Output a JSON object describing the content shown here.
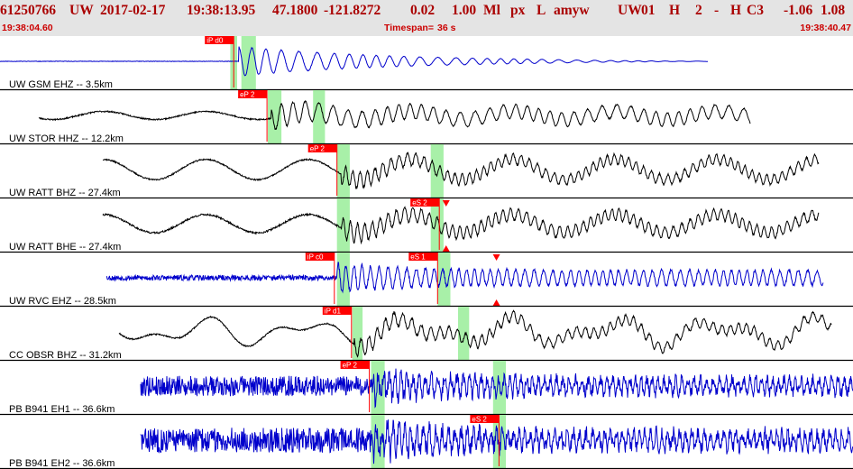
{
  "header": {
    "title_parts": [
      "61250766",
      "UW",
      "2017-02-17",
      "19:38:13.95",
      "47.1800",
      "-121.8272",
      "0.02",
      "1.00",
      "Ml",
      "px",
      "L",
      "amyw",
      "UW",
      "01",
      "H",
      "2",
      "-",
      "H",
      "C3",
      "-1.06",
      "1.08"
    ],
    "start_time": "19:38:04.60",
    "timespan_label": "Timespan=",
    "timespan_value": "36 s",
    "end_time": "19:38:40.47"
  },
  "colors": {
    "header_bg": "#e4e4e4",
    "header_text": "#aa0000",
    "subheader_text": "#cc0000",
    "pick_box": "#ff0000",
    "pick_line": "#ff0000",
    "pick_window": "#a8f0a8",
    "trace_blue": "#0000cc",
    "trace_black": "#000000"
  },
  "chart_data": {
    "type": "line",
    "title": "",
    "xlabel": "",
    "ylabel": "",
    "xlim": [
      "19:38:04.60",
      "19:38:40.47"
    ],
    "timespan_s": 36,
    "grid": false,
    "legend": "none",
    "channels": [
      {
        "label": "UW GSM EHZ -- 3.5km",
        "color": "#0000cc",
        "signal": {
          "start": 0.0,
          "end": 0.83,
          "onset": 0.28,
          "pre_noise": 0.01,
          "pre_wave": 0.0,
          "post_amp": 0.65,
          "post_period": 0.018,
          "decay": 0.18,
          "noise": 0.03,
          "tail_flat": true,
          "seed": 11
        },
        "picks": [
          {
            "label": "iP d0",
            "t": 0.274
          }
        ],
        "windows": [
          [
            0.27,
            0.278
          ],
          [
            0.283,
            0.3
          ]
        ],
        "markers": []
      },
      {
        "label": "UW STOR HHZ -- 12.2km",
        "color": "#000000",
        "signal": {
          "start": 0.045,
          "end": 0.88,
          "onset": 0.318,
          "pre_noise": 0.03,
          "pre_wave": 0.2,
          "post_amp": 0.55,
          "post_period": 0.015,
          "decay": 0.35,
          "noise": 0.05,
          "seed": 23
        },
        "picks": [
          {
            "label": "eP 2",
            "t": 0.313
          }
        ],
        "windows": [
          [
            0.314,
            0.33
          ],
          [
            0.367,
            0.381
          ]
        ],
        "markers": []
      },
      {
        "label": "UW RATT BHZ -- 27.4km",
        "color": "#000000",
        "signal": {
          "start": 0.12,
          "end": 0.96,
          "onset": 0.4,
          "pre_noise": 0.03,
          "pre_wave": 0.5,
          "post_amp": 0.4,
          "post_period": 0.009,
          "decay": 1.5,
          "noise": 0.08,
          "seed": 37
        },
        "picks": [
          {
            "label": "eP 2",
            "t": 0.395
          }
        ],
        "windows": [
          [
            0.395,
            0.41
          ],
          [
            0.505,
            0.52
          ]
        ],
        "markers": []
      },
      {
        "label": "UW RATT BHE -- 27.4km",
        "color": "#000000",
        "signal": {
          "start": 0.12,
          "end": 0.96,
          "onset": 0.4,
          "pre_noise": 0.04,
          "pre_wave": 0.45,
          "post_amp": 0.45,
          "post_period": 0.009,
          "decay": 1.5,
          "noise": 0.09,
          "seed": 41
        },
        "picks": [
          {
            "label": "eS 2",
            "t": 0.515
          }
        ],
        "windows": [
          [
            0.395,
            0.41
          ],
          [
            0.505,
            0.52
          ]
        ],
        "markers": [
          {
            "t": 0.523,
            "dir": "down",
            "pos": "top"
          },
          {
            "t": 0.523,
            "dir": "up",
            "pos": "bottom"
          }
        ]
      },
      {
        "label": "UW RVC EHZ -- 28.5km",
        "color": "#0000cc",
        "signal": {
          "start": 0.125,
          "end": 0.965,
          "onset": 0.395,
          "pre_noise": 0.12,
          "pre_wave": 0.0,
          "post_amp": 0.6,
          "post_period": 0.01,
          "decay": 2.0,
          "noise": 0.12,
          "seed": 53
        },
        "picks": [
          {
            "label": "iP c0",
            "t": 0.392
          },
          {
            "label": "eS 1",
            "t": 0.513
          }
        ],
        "windows": [
          [
            0.395,
            0.41
          ],
          [
            0.513,
            0.528
          ]
        ],
        "markers": [
          {
            "t": 0.582,
            "dir": "down",
            "pos": "top"
          },
          {
            "t": 0.582,
            "dir": "up",
            "pos": "bottom"
          }
        ]
      },
      {
        "label": "CC OBSR BHZ -- 31.2km",
        "color": "#000000",
        "signal": {
          "start": 0.14,
          "end": 0.975,
          "onset": 0.415,
          "pre_noise": 0.03,
          "pre_wave": 0.45,
          "post_amp": 0.4,
          "post_period": 0.01,
          "decay": 1.5,
          "noise": 0.08,
          "swell": 0.6,
          "seed": 67
        },
        "picks": [
          {
            "label": "iP d1",
            "t": 0.412
          }
        ],
        "windows": [
          [
            0.413,
            0.425
          ],
          [
            0.537,
            0.55
          ]
        ],
        "markers": []
      },
      {
        "label": "PB B941 EH1 -- 36.6km",
        "color": "#0000cc",
        "signal": {
          "start": 0.165,
          "end": 1.0,
          "onset": 0.438,
          "pre_noise": 0.45,
          "pre_wave": 0.0,
          "post_amp": 0.55,
          "post_period": 0.007,
          "decay": 3.0,
          "noise": 0.45,
          "seed": 79
        },
        "picks": [
          {
            "label": "eP 2",
            "t": 0.433
          }
        ],
        "windows": [
          [
            0.435,
            0.451
          ],
          [
            0.578,
            0.593
          ]
        ],
        "markers": []
      },
      {
        "label": "PB B941 EH2 -- 36.6km",
        "color": "#0000cc",
        "signal": {
          "start": 0.165,
          "end": 1.0,
          "onset": 0.438,
          "pre_noise": 0.55,
          "pre_wave": 0.0,
          "post_amp": 0.6,
          "post_period": 0.007,
          "decay": 3.0,
          "noise": 0.55,
          "seed": 83
        },
        "picks": [
          {
            "label": "eS 2",
            "t": 0.585
          }
        ],
        "windows": [
          [
            0.435,
            0.451
          ],
          [
            0.578,
            0.593
          ]
        ],
        "markers": []
      }
    ]
  }
}
